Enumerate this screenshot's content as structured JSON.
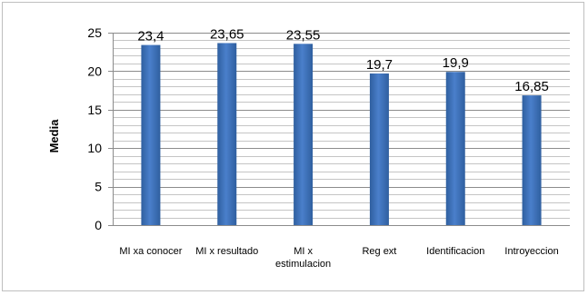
{
  "chart_data": {
    "type": "bar",
    "categories": [
      "MI xa conocer",
      "MI x resultado",
      "MI x estimulacion",
      "Reg ext",
      "Identificacion",
      "Introyeccion"
    ],
    "category_lines": [
      [
        "MI xa conocer"
      ],
      [
        "MI x resultado"
      ],
      [
        "MI x",
        "estimulacion"
      ],
      [
        "Reg ext"
      ],
      [
        "Identificacion"
      ],
      [
        "Introyeccion"
      ]
    ],
    "values": [
      23.4,
      23.65,
      23.55,
      19.7,
      19.9,
      16.85
    ],
    "data_labels": [
      "23,4",
      "23,65",
      "23,55",
      "19,7",
      "19,9",
      "16,85"
    ],
    "title": "",
    "xlabel": "",
    "ylabel": "Media",
    "ylim": [
      0,
      25
    ],
    "yticks": [
      0,
      5,
      10,
      15,
      20,
      25
    ],
    "grid": true,
    "legend": "none",
    "bar_color": "#4a7fcb",
    "bar_color_dark": "#2f5f9f",
    "grid_color": "#8c8c8c"
  }
}
